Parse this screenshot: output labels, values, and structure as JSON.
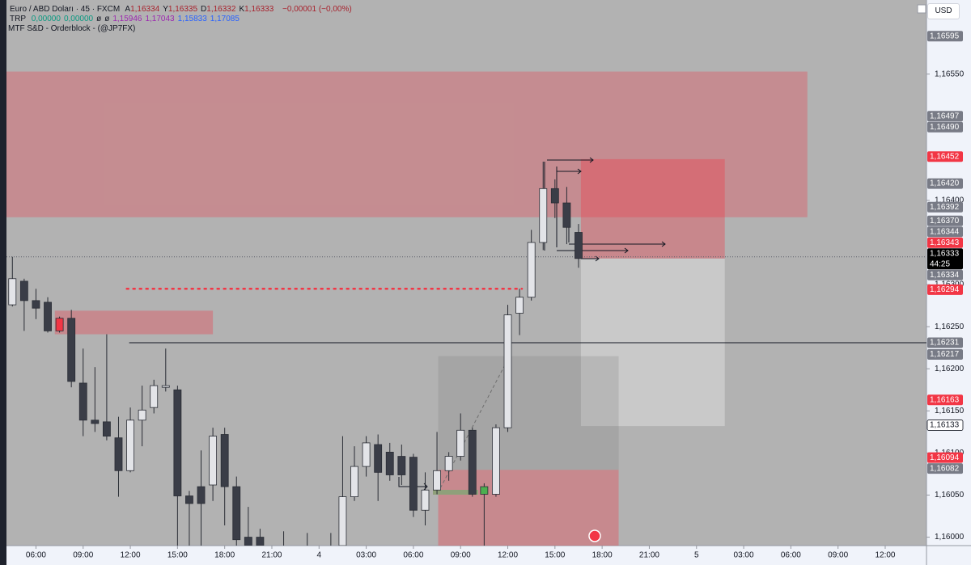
{
  "header": {
    "symbol": "Euro / ABD Doları · 45 · FXCM",
    "ohlc": [
      {
        "label": "A",
        "value": "1,16334"
      },
      {
        "label": "Y",
        "value": "1,16335"
      },
      {
        "label": "D",
        "value": "1,16332"
      },
      {
        "label": "K",
        "value": "1,16333"
      }
    ],
    "change": "−0,00001 (−0,00%)",
    "indicator": {
      "name": "TRP",
      "values": [
        {
          "text": "0,00000",
          "color": "#089981"
        },
        {
          "text": "0,00000",
          "color": "#089981"
        },
        {
          "text": "ø",
          "color": "#131722"
        },
        {
          "text": "ø",
          "color": "#131722"
        },
        {
          "text": "1,15946",
          "color": "#9c27b0"
        },
        {
          "text": "1,17043",
          "color": "#9c27b0"
        },
        {
          "text": "1,15833",
          "color": "#2962ff"
        },
        {
          "text": "1,17085",
          "color": "#2962ff"
        }
      ]
    },
    "study": "MTF S&D - Orderblock - (@JP7FX)",
    "currency": "USD"
  },
  "chart_data": {
    "type": "candlestick",
    "up_color": "#e3e4e8",
    "down_color": "#3a3d47",
    "wick_color": "#2a2d35",
    "highlights": [
      {
        "index": 4,
        "color": "#f23645"
      },
      {
        "index": 40,
        "color": "#4caf50"
      }
    ],
    "open": [
      1.16276,
      1.16304,
      1.16281,
      1.16279,
      1.1626,
      1.1626,
      1.16183,
      1.16139,
      1.16137,
      1.16118,
      1.16079,
      1.16139,
      1.16154,
      1.16178,
      1.16175,
      1.16049,
      1.1606,
      1.16062,
      1.16122,
      1.1606,
      1.16,
      1.16,
      1.1598,
      1.15985,
      1.1598,
      1.15985,
      1.15975,
      1.1597,
      1.1599,
      1.16048,
      1.16084,
      1.1611,
      1.16101,
      1.16096,
      1.16095,
      1.16032,
      1.16056,
      1.16079,
      1.16096,
      1.16127,
      1.16051,
      1.16051,
      1.1613,
      1.16266,
      1.16285,
      1.1635,
      1.16414,
      1.16397,
      1.16362
    ],
    "high": [
      1.16333,
      1.16307,
      1.16295,
      1.16285,
      1.16262,
      1.1627,
      1.16224,
      1.16202,
      1.16241,
      1.16143,
      1.16154,
      1.1618,
      1.16187,
      1.16224,
      1.1618,
      1.16055,
      1.16103,
      1.1613,
      1.1613,
      1.16072,
      1.16036,
      1.1601,
      1.15988,
      1.16007,
      1.15988,
      1.16005,
      1.15988,
      1.16005,
      1.1612,
      1.16108,
      1.1612,
      1.16122,
      1.16112,
      1.1611,
      1.16099,
      1.16077,
      1.16125,
      1.16101,
      1.16147,
      1.1613,
      1.16064,
      1.16134,
      1.16276,
      1.16295,
      1.16365,
      1.16446,
      1.16425,
      1.16416,
      1.16372
    ],
    "low": [
      1.16274,
      1.16245,
      1.16259,
      1.16243,
      1.16243,
      1.16178,
      1.1612,
      1.16125,
      1.16115,
      1.16048,
      1.16077,
      1.16108,
      1.16147,
      1.16173,
      1.1599,
      1.1599,
      1.15976,
      1.16043,
      1.16014,
      1.15986,
      1.15986,
      1.15986,
      1.1595,
      1.1595,
      1.1595,
      1.1595,
      1.1595,
      1.1595,
      1.15986,
      1.16043,
      1.16072,
      1.16043,
      1.16067,
      1.16062,
      1.16024,
      1.16014,
      1.16051,
      1.16067,
      1.16091,
      1.16048,
      1.1599,
      1.16048,
      1.16125,
      1.1624,
      1.16281,
      1.16341,
      1.16379,
      1.16348,
      1.1632
    ],
    "close": [
      1.16307,
      1.16281,
      1.16272,
      1.16245,
      1.16245,
      1.16185,
      1.16139,
      1.16135,
      1.1612,
      1.16079,
      1.16139,
      1.16151,
      1.1618,
      1.1618,
      1.16049,
      1.1604,
      1.1604,
      1.1612,
      1.1606,
      1.15997,
      1.1599,
      1.1599,
      1.1596,
      1.1597,
      1.15965,
      1.1597,
      1.1598,
      1.15985,
      1.16048,
      1.16084,
      1.16112,
      1.16077,
      1.16074,
      1.16074,
      1.16032,
      1.16056,
      1.16079,
      1.16096,
      1.16127,
      1.16051,
      1.1606,
      1.1613,
      1.16264,
      1.16285,
      1.1635,
      1.16414,
      1.16397,
      1.16368,
      1.16331
    ],
    "xlim": [
      -0.5,
      77.5
    ],
    "ylim": [
      1.1599,
      1.16638
    ],
    "xticks": [
      {
        "value": 2,
        "label": "06:00"
      },
      {
        "value": 6,
        "label": "09:00"
      },
      {
        "value": 10,
        "label": "12:00"
      },
      {
        "value": 14,
        "label": "15:00"
      },
      {
        "value": 18,
        "label": "18:00"
      },
      {
        "value": 22,
        "label": "21:00"
      },
      {
        "value": 26,
        "label": "4"
      },
      {
        "value": 30,
        "label": "03:00"
      },
      {
        "value": 34,
        "label": "06:00"
      },
      {
        "value": 38,
        "label": "09:00"
      },
      {
        "value": 42,
        "label": "12:00"
      },
      {
        "value": 46,
        "label": "15:00"
      },
      {
        "value": 50,
        "label": "18:00"
      },
      {
        "value": 54,
        "label": "21:00"
      },
      {
        "value": 58,
        "label": "5"
      },
      {
        "value": 62,
        "label": "03:00"
      },
      {
        "value": 66,
        "label": "06:00"
      },
      {
        "value": 70,
        "label": "09:00"
      },
      {
        "value": 74,
        "label": "12:00"
      }
    ],
    "yticks": [
      {
        "value": 1.16,
        "label": "1,16000"
      },
      {
        "value": 1.1605,
        "label": "1,16050"
      },
      {
        "value": 1.161,
        "label": "1,16100"
      },
      {
        "value": 1.1615,
        "label": "1,16150"
      },
      {
        "value": 1.162,
        "label": "1,16200"
      },
      {
        "value": 1.1625,
        "label": "1,16250"
      },
      {
        "value": 1.163,
        "label": "1,16300"
      },
      {
        "value": 1.164,
        "label": "1,16400"
      },
      {
        "value": 1.1655,
        "label": "1,16550"
      }
    ],
    "zones": [
      {
        "x": [
          -0.5,
          67.4
        ],
        "y": [
          1.1638,
          1.16553
        ],
        "color": "rgba(242,54,69,0.30)"
      },
      {
        "x": [
          3.6,
          17.0
        ],
        "y": [
          1.16241,
          1.16269
        ],
        "color": "rgba(242,54,69,0.32)"
      },
      {
        "x": [
          48.2,
          60.4
        ],
        "y": [
          1.16132,
          1.16331
        ],
        "color": "rgba(255,255,255,0.30)"
      },
      {
        "x": [
          48.2,
          60.4
        ],
        "y": [
          1.16331,
          1.16449
        ],
        "color": "rgba(242,54,69,0.35)"
      },
      {
        "x": [
          36.1,
          51.4
        ],
        "y": [
          1.1608,
          1.16215
        ],
        "color": "rgba(120,120,120,0.22)"
      },
      {
        "x": [
          36.1,
          51.4
        ],
        "y": [
          1.1599,
          1.1608
        ],
        "color": "rgba(242,54,69,0.33)"
      }
    ],
    "lines": [
      {
        "y": 1.16231,
        "x": [
          9.9,
          77.5
        ],
        "color": "#131722",
        "style": "solid"
      },
      {
        "y": 1.16295,
        "x": [
          9.7,
          43.2
        ],
        "color": "#f23645",
        "style": "dotted"
      },
      {
        "y": 1.16333,
        "x": [
          -0.5,
          77.5
        ],
        "color": "#5d606b",
        "style": "dashed"
      }
    ],
    "price_labels": [
      {
        "value": 1.16595,
        "label": "1,16595",
        "color": "#787b86"
      },
      {
        "value": 1.16497,
        "label": "1,16497",
        "color": "#787b86"
      },
      {
        "value": 1.1649,
        "label": "1,16490",
        "color": "#787b86"
      },
      {
        "value": 1.16452,
        "label": "1,16452",
        "color": "#f23645"
      },
      {
        "value": 1.1642,
        "label": "1,16420",
        "color": "#787b86"
      },
      {
        "value": 1.16392,
        "label": "1,16392",
        "color": "#787b86"
      },
      {
        "value": 1.1637,
        "label": "1,16370",
        "color": "#787b86"
      },
      {
        "value": 1.16344,
        "label": "1,16344",
        "color": "#787b86"
      },
      {
        "value": 1.16343,
        "label": "1,16343",
        "color": "#f23645"
      },
      {
        "value": 1.16334,
        "label": "1,16334",
        "color": "#787b86"
      },
      {
        "value": 1.16333,
        "label": "1,16333",
        "color": "#000000",
        "countdown": "44:25"
      },
      {
        "value": 1.16294,
        "label": "1,16294",
        "color": "#f23645"
      },
      {
        "value": 1.16231,
        "label": "1,16231",
        "color": "#787b86"
      },
      {
        "value": 1.16217,
        "label": "1,16217",
        "color": "#787b86"
      },
      {
        "value": 1.16163,
        "label": "1,16163",
        "color": "#f23645"
      },
      {
        "value": 1.16133,
        "label": "1,16133",
        "color": "#ffffff"
      },
      {
        "value": 1.16094,
        "label": "1,16094",
        "color": "#f23645"
      },
      {
        "value": 1.16082,
        "label": "1,16082",
        "color": "#787b86"
      }
    ]
  }
}
